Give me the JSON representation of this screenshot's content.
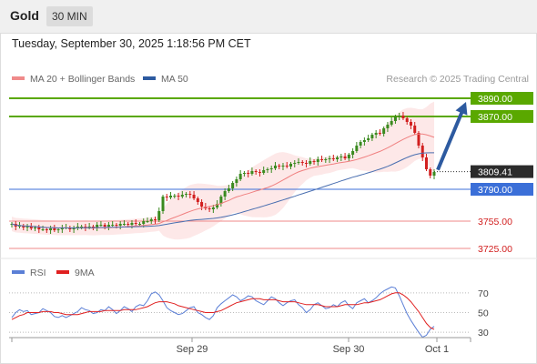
{
  "header": {
    "symbol": "Gold",
    "timeframe": "30 MIN"
  },
  "timestamp": "Tuesday, September 30, 2025 1:18:56 PM CET",
  "copyright": "Research © 2025 Trading Central",
  "colors": {
    "target": "#5aa800",
    "pivot": "#3b6fd8",
    "support": "#ef8a8a",
    "arrow": "#2d5aa0",
    "up": "#3a8a1f",
    "down": "#d21f1f",
    "bands": "#fde2e2",
    "ma20": "#f08080",
    "ma50": "#4a6fb0",
    "rsi": "#5b7fd6",
    "rsi_ma": "#e02020"
  },
  "chart_data": [
    {
      "type": "candlestick",
      "legend": [
        {
          "name": "MA 20 + Bollinger Bands",
          "color": "#f08a8a"
        },
        {
          "name": "MA 50",
          "color": "#2d5aa0"
        }
      ],
      "ylim": [
        3715,
        3898
      ],
      "x_ticks": [
        "Sep 29",
        "Sep 30",
        "Oct 1"
      ],
      "current_price": "3809.41",
      "levels": [
        {
          "label": "3890.00",
          "value": 3890,
          "role": "target"
        },
        {
          "label": "3870.00",
          "value": 3870,
          "role": "target"
        },
        {
          "label": "3790.00",
          "value": 3790,
          "role": "pivot"
        },
        {
          "label": "3755.00",
          "value": 3755,
          "role": "support"
        },
        {
          "label": "3725.00",
          "value": 3725,
          "role": "support"
        }
      ],
      "close": [
        3752,
        3749,
        3750,
        3748,
        3749,
        3747,
        3748,
        3746,
        3746,
        3745,
        3747,
        3745,
        3746,
        3748,
        3748,
        3746,
        3747,
        3749,
        3749,
        3748,
        3749,
        3748,
        3751,
        3751,
        3749,
        3751,
        3751,
        3750,
        3752,
        3752,
        3751,
        3753,
        3752,
        3752,
        3755,
        3755,
        3757,
        3756,
        3766,
        3782,
        3781,
        3783,
        3783,
        3782,
        3784,
        3785,
        3784,
        3780,
        3776,
        3771,
        3769,
        3768,
        3770,
        3774,
        3782,
        3788,
        3791,
        3797,
        3801,
        3807,
        3808,
        3807,
        3810,
        3809,
        3808,
        3811,
        3812,
        3813,
        3816,
        3815,
        3816,
        3815,
        3818,
        3819,
        3820,
        3819,
        3818,
        3821,
        3820,
        3823,
        3822,
        3823,
        3824,
        3823,
        3825,
        3826,
        3824,
        3828,
        3832,
        3838,
        3842,
        3844,
        3846,
        3850,
        3852,
        3851,
        3857,
        3861,
        3865,
        3870,
        3871,
        3868,
        3864,
        3860,
        3852,
        3838,
        3825,
        3812,
        3805,
        3809
      ]
    },
    {
      "type": "line",
      "legend": [
        {
          "name": "RSI",
          "color": "#5b7fd6"
        },
        {
          "name": "9MA",
          "color": "#e02020"
        }
      ],
      "ylim": [
        20,
        80
      ],
      "y_ticks": [
        70,
        50,
        30
      ],
      "series": [
        {
          "name": "RSI",
          "values": [
            45,
            50,
            53,
            51,
            52,
            48,
            49,
            50,
            54,
            52,
            50,
            46,
            45,
            47,
            45,
            47,
            49,
            51,
            55,
            53,
            52,
            49,
            50,
            53,
            52,
            56,
            53,
            49,
            52,
            56,
            54,
            51,
            56,
            58,
            57,
            62,
            69,
            71,
            68,
            62,
            55,
            52,
            50,
            48,
            49,
            52,
            55,
            56,
            50,
            48,
            45,
            43,
            47,
            55,
            59,
            62,
            65,
            68,
            66,
            62,
            64,
            67,
            66,
            62,
            60,
            58,
            62,
            66,
            64,
            60,
            57,
            60,
            62,
            63,
            58,
            55,
            50,
            53,
            58,
            60,
            57,
            54,
            55,
            58,
            56,
            60,
            62,
            57,
            54,
            60,
            62,
            64,
            60,
            62,
            65,
            69,
            72,
            74,
            76,
            75,
            67,
            58,
            49,
            42,
            36,
            30,
            25,
            27,
            33,
            36
          ]
        },
        {
          "name": "9MA",
          "values": [
            43,
            45,
            47,
            48,
            50,
            50,
            50,
            50,
            51,
            51,
            51,
            50,
            50,
            49,
            48,
            48,
            48,
            48,
            49,
            50,
            51,
            51,
            51,
            51,
            52,
            52,
            52,
            52,
            52,
            53,
            53,
            53,
            53,
            54,
            55,
            56,
            58,
            60,
            61,
            61,
            61,
            60,
            59,
            57,
            56,
            55,
            54,
            53,
            52,
            51,
            50,
            50,
            50,
            51,
            52,
            54,
            56,
            58,
            60,
            61,
            62,
            63,
            64,
            64,
            64,
            63,
            63,
            63,
            63,
            62,
            61,
            61,
            61,
            61,
            60,
            59,
            58,
            58,
            58,
            58,
            57,
            56,
            56,
            56,
            56,
            57,
            58,
            58,
            58,
            58,
            59,
            60,
            60,
            61,
            62,
            63,
            65,
            67,
            69,
            70,
            70,
            68,
            65,
            61,
            56,
            51,
            45,
            39,
            35,
            33
          ]
        }
      ]
    }
  ]
}
